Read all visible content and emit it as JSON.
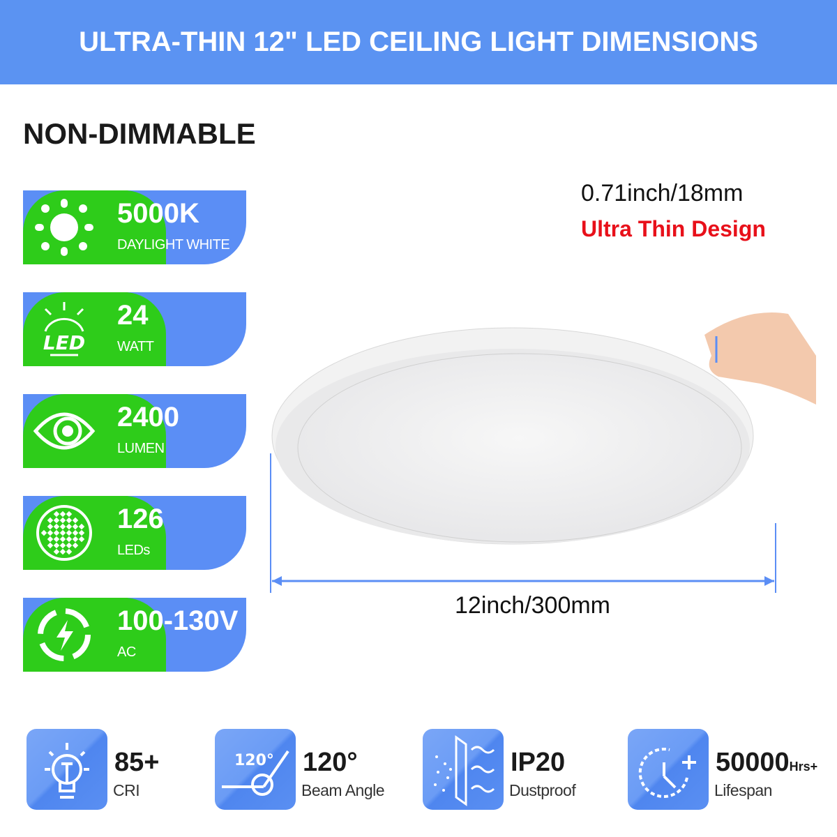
{
  "title": "ULTRA-THIN 12\" LED CEILING LIGHT DIMENSIONS",
  "subtitle": "NON-DIMMABLE",
  "colors": {
    "banner": "#5b93f2",
    "green": "#2ecc1a",
    "blue": "#5b8ef5",
    "accent_red": "#e8101a"
  },
  "badges": [
    {
      "icon": "sun-icon",
      "value": "5000K",
      "unit": "DAYLIGHT WHITE"
    },
    {
      "icon": "led-icon",
      "value": "24",
      "unit": "WATT",
      "icon_text": "LED"
    },
    {
      "icon": "eye-icon",
      "value": "2400",
      "unit": "LUMEN"
    },
    {
      "icon": "led-grid-icon",
      "value": "126",
      "unit": "LEDs"
    },
    {
      "icon": "lightning-icon",
      "value": "100-130V",
      "unit": "AC"
    }
  ],
  "thickness": {
    "value": "0.71inch/18mm",
    "label": "Ultra Thin Design"
  },
  "width": {
    "value": "12inch/300mm"
  },
  "specs": [
    {
      "icon": "bulb-icon",
      "value": "85+",
      "suffix": "",
      "unit": "CRI"
    },
    {
      "icon": "beam-angle-icon",
      "value": "120°",
      "suffix": "",
      "unit": "Beam Angle",
      "icon_text": "120°"
    },
    {
      "icon": "dustproof-icon",
      "value": "IP20",
      "suffix": "",
      "unit": "Dustproof"
    },
    {
      "icon": "clock-plus-icon",
      "value": "50000",
      "suffix": "Hrs+",
      "unit": "Lifespan"
    }
  ]
}
